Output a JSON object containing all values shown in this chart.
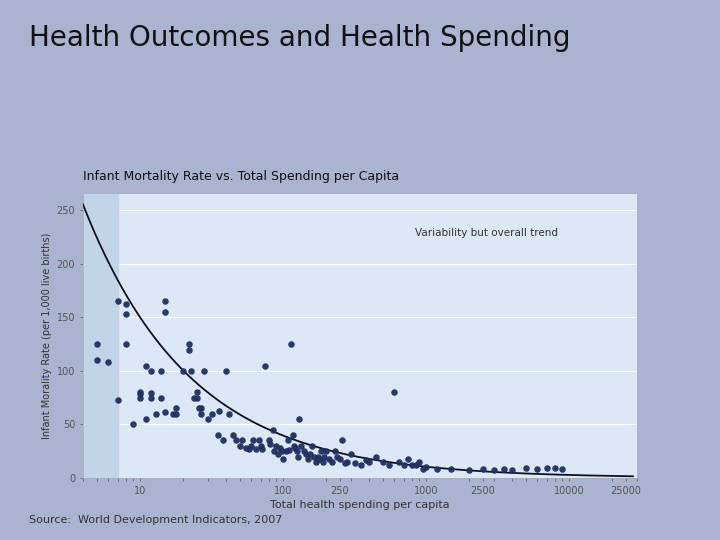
{
  "title": "Health Outcomes and Health Spending",
  "subtitle": "Infant Mortality Rate vs. Total Spending per Capita",
  "xlabel": "Total health spending per capita",
  "ylabel": "Infant Morality Rate (per 1,000 live births)",
  "annotation": "Variability but overall trend",
  "source": "Source:  World Development Indicators, 2007",
  "bg_color": "#aab4d0",
  "plot_bg_color": "#dce8f5",
  "left_shade_color": "#c2d4e8",
  "subtitle_bg_color": "#c8d8e8",
  "scatter_color": "#1f3061",
  "curve_color": "#111122",
  "scatter_points": [
    [
      5,
      110
    ],
    [
      5,
      125
    ],
    [
      6,
      108
    ],
    [
      7,
      73
    ],
    [
      7,
      165
    ],
    [
      8,
      153
    ],
    [
      8,
      163
    ],
    [
      8,
      125
    ],
    [
      9,
      50
    ],
    [
      10,
      75
    ],
    [
      10,
      78
    ],
    [
      10,
      80
    ],
    [
      11,
      55
    ],
    [
      11,
      105
    ],
    [
      12,
      79
    ],
    [
      12,
      75
    ],
    [
      12,
      100
    ],
    [
      13,
      60
    ],
    [
      14,
      100
    ],
    [
      14,
      75
    ],
    [
      15,
      165
    ],
    [
      15,
      155
    ],
    [
      15,
      62
    ],
    [
      17,
      60
    ],
    [
      18,
      60
    ],
    [
      18,
      65
    ],
    [
      20,
      100
    ],
    [
      22,
      125
    ],
    [
      22,
      120
    ],
    [
      23,
      100
    ],
    [
      24,
      75
    ],
    [
      25,
      80
    ],
    [
      25,
      75
    ],
    [
      26,
      65
    ],
    [
      27,
      65
    ],
    [
      27,
      60
    ],
    [
      28,
      100
    ],
    [
      30,
      55
    ],
    [
      32,
      60
    ],
    [
      35,
      40
    ],
    [
      36,
      63
    ],
    [
      38,
      35
    ],
    [
      40,
      100
    ],
    [
      42,
      60
    ],
    [
      45,
      40
    ],
    [
      47,
      35
    ],
    [
      50,
      30
    ],
    [
      52,
      35
    ],
    [
      55,
      28
    ],
    [
      58,
      27
    ],
    [
      60,
      30
    ],
    [
      62,
      35
    ],
    [
      65,
      27
    ],
    [
      68,
      35
    ],
    [
      70,
      30
    ],
    [
      72,
      27
    ],
    [
      75,
      105
    ],
    [
      80,
      35
    ],
    [
      82,
      32
    ],
    [
      85,
      45
    ],
    [
      87,
      25
    ],
    [
      90,
      30
    ],
    [
      92,
      22
    ],
    [
      95,
      28
    ],
    [
      98,
      25
    ],
    [
      100,
      18
    ],
    [
      105,
      25
    ],
    [
      108,
      35
    ],
    [
      110,
      26
    ],
    [
      115,
      125
    ],
    [
      118,
      40
    ],
    [
      120,
      30
    ],
    [
      122,
      28
    ],
    [
      125,
      25
    ],
    [
      128,
      20
    ],
    [
      130,
      55
    ],
    [
      135,
      30
    ],
    [
      140,
      25
    ],
    [
      145,
      22
    ],
    [
      150,
      18
    ],
    [
      155,
      22
    ],
    [
      160,
      30
    ],
    [
      165,
      20
    ],
    [
      170,
      15
    ],
    [
      175,
      20
    ],
    [
      180,
      18
    ],
    [
      185,
      25
    ],
    [
      190,
      15
    ],
    [
      195,
      20
    ],
    [
      200,
      25
    ],
    [
      210,
      18
    ],
    [
      220,
      15
    ],
    [
      230,
      25
    ],
    [
      240,
      20
    ],
    [
      250,
      18
    ],
    [
      260,
      35
    ],
    [
      270,
      14
    ],
    [
      280,
      15
    ],
    [
      300,
      22
    ],
    [
      320,
      14
    ],
    [
      350,
      12
    ],
    [
      380,
      17
    ],
    [
      400,
      15
    ],
    [
      450,
      20
    ],
    [
      500,
      15
    ],
    [
      550,
      12
    ],
    [
      600,
      80
    ],
    [
      650,
      15
    ],
    [
      700,
      12
    ],
    [
      750,
      18
    ],
    [
      800,
      12
    ],
    [
      850,
      12
    ],
    [
      900,
      15
    ],
    [
      950,
      8
    ],
    [
      1000,
      10
    ],
    [
      1200,
      8
    ],
    [
      1500,
      8
    ],
    [
      2000,
      7
    ],
    [
      2500,
      8
    ],
    [
      3000,
      7
    ],
    [
      3500,
      8
    ],
    [
      4000,
      7
    ],
    [
      5000,
      9
    ],
    [
      6000,
      8
    ],
    [
      7000,
      9
    ],
    [
      8000,
      9
    ],
    [
      9000,
      8
    ]
  ],
  "xticks": [
    10,
    100,
    250,
    1000,
    2500,
    10000,
    25000
  ],
  "yticks": [
    0,
    50,
    100,
    150,
    200,
    250
  ],
  "ylim": [
    0,
    265
  ],
  "xlim": [
    4,
    30000
  ],
  "curve_x1": 4,
  "curve_x2": 28000,
  "curve_a_x": 5,
  "curve_a_y": 225,
  "curve_b_x": 2000,
  "curve_b_y": 7
}
